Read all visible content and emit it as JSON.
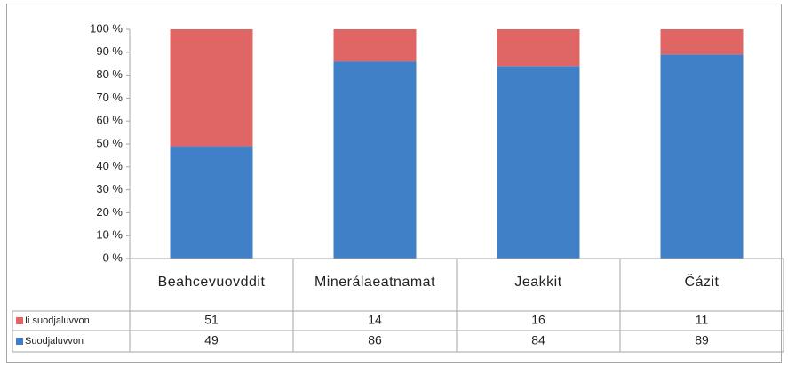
{
  "chart_data": {
    "type": "stacked-bar",
    "categories": [
      "Beahcevuovddit",
      "Minerálaeatnamat",
      "Jeakkit",
      "Čázit"
    ],
    "series": [
      {
        "name": "Ii suodjaluvvon",
        "color": "#e06666",
        "values": [
          51,
          14,
          16,
          11
        ]
      },
      {
        "name": "Suodjaluvvon",
        "color": "#3f80c6",
        "values": [
          49,
          86,
          84,
          89
        ]
      }
    ],
    "ylim": [
      0,
      100
    ],
    "yticks": [
      {
        "value": 0,
        "label": "0 %"
      },
      {
        "value": 10,
        "label": "10 %"
      },
      {
        "value": 20,
        "label": "20 %"
      },
      {
        "value": 30,
        "label": "30 %"
      },
      {
        "value": 40,
        "label": "40 %"
      },
      {
        "value": 50,
        "label": "50 %"
      },
      {
        "value": 60,
        "label": "60 %"
      },
      {
        "value": 70,
        "label": "70 %"
      },
      {
        "value": 80,
        "label": "80 %"
      },
      {
        "value": 90,
        "label": "90 %"
      },
      {
        "value": 100,
        "label": "100 %"
      }
    ],
    "data_table": true
  }
}
